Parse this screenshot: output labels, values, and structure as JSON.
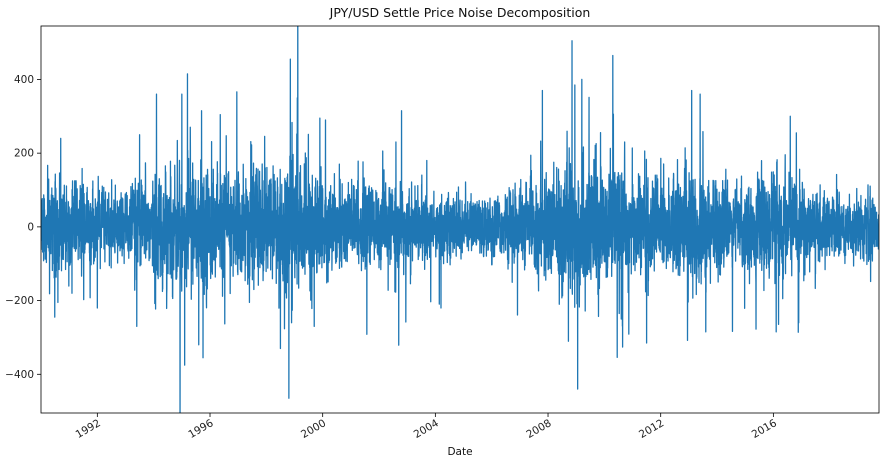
{
  "chart_data": {
    "type": "line",
    "title": "JPY/USD Settle Price Noise Decomposition",
    "xlabel": "Date",
    "ylabel": "",
    "xlim": [
      1990.0,
      2019.75
    ],
    "ylim": [
      -505,
      545
    ],
    "x_ticks": [
      1992,
      1996,
      2000,
      2004,
      2008,
      2012,
      2016
    ],
    "x_tick_labels": [
      "1992",
      "1996",
      "2000",
      "2004",
      "2008",
      "2012",
      "2016"
    ],
    "y_ticks": [
      -400,
      -200,
      0,
      200,
      400
    ],
    "y_tick_labels": [
      "−400",
      "−200",
      "0",
      "200",
      "400"
    ],
    "grid": false,
    "legend": "none",
    "series": [
      {
        "color": "#1f77b4",
        "sample_step_years": 0.004,
        "amplitude_profile": [
          {
            "year": 1990.0,
            "amp": 55
          },
          {
            "year": 1991.0,
            "amp": 60
          },
          {
            "year": 1992.5,
            "amp": 48
          },
          {
            "year": 1994.0,
            "amp": 65
          },
          {
            "year": 1995.3,
            "amp": 90
          },
          {
            "year": 1996.5,
            "amp": 70
          },
          {
            "year": 1998.0,
            "amp": 75
          },
          {
            "year": 1998.8,
            "amp": 95
          },
          {
            "year": 2000.0,
            "amp": 65
          },
          {
            "year": 2002.0,
            "amp": 55
          },
          {
            "year": 2004.0,
            "amp": 45
          },
          {
            "year": 2006.0,
            "amp": 40
          },
          {
            "year": 2007.8,
            "amp": 60
          },
          {
            "year": 2008.8,
            "amp": 100
          },
          {
            "year": 2010.0,
            "amp": 80
          },
          {
            "year": 2012.0,
            "amp": 60
          },
          {
            "year": 2013.3,
            "amp": 80
          },
          {
            "year": 2014.5,
            "amp": 50
          },
          {
            "year": 2016.3,
            "amp": 75
          },
          {
            "year": 2017.5,
            "amp": 45
          },
          {
            "year": 2019.75,
            "amp": 40
          }
        ],
        "spikes": [
          {
            "year": 1990.7,
            "value": 240
          },
          {
            "year": 1990.6,
            "value": -205
          },
          {
            "year": 1991.1,
            "value": -180
          },
          {
            "year": 1992.0,
            "value": -220
          },
          {
            "year": 1993.4,
            "value": -270
          },
          {
            "year": 1993.5,
            "value": 250
          },
          {
            "year": 1994.1,
            "value": 360
          },
          {
            "year": 1995.0,
            "value": 360
          },
          {
            "year": 1995.1,
            "value": -375
          },
          {
            "year": 1995.2,
            "value": 415
          },
          {
            "year": 1995.6,
            "value": -320
          },
          {
            "year": 1995.7,
            "value": 315
          },
          {
            "year": 1995.75,
            "value": -355
          },
          {
            "year": 1997.4,
            "value": 355
          },
          {
            "year": 1997.4,
            "value": -205
          },
          {
            "year": 1998.5,
            "value": -330
          },
          {
            "year": 1998.8,
            "value": -465
          },
          {
            "year": 1998.85,
            "value": 455
          },
          {
            "year": 1999.1,
            "value": 350
          },
          {
            "year": 1999.7,
            "value": -270
          },
          {
            "year": 1999.9,
            "value": 295
          },
          {
            "year": 2000.1,
            "value": 290
          },
          {
            "year": 2002.8,
            "value": 315
          },
          {
            "year": 2004.2,
            "value": 225
          },
          {
            "year": 2004.2,
            "value": -220
          },
          {
            "year": 2007.8,
            "value": 370
          },
          {
            "year": 2008.4,
            "value": -210
          },
          {
            "year": 2008.85,
            "value": 505
          },
          {
            "year": 2008.95,
            "value": 385
          },
          {
            "year": 2009.05,
            "value": -440
          },
          {
            "year": 2009.2,
            "value": 400
          },
          {
            "year": 2010.3,
            "value": 465
          },
          {
            "year": 2010.6,
            "value": -250
          },
          {
            "year": 2011.5,
            "value": -315
          },
          {
            "year": 2013.1,
            "value": 370
          },
          {
            "year": 2013.4,
            "value": 360
          },
          {
            "year": 2013.6,
            "value": -285
          },
          {
            "year": 2016.1,
            "value": -285
          },
          {
            "year": 2016.6,
            "value": 300
          },
          {
            "year": 2016.9,
            "value": -260
          }
        ]
      }
    ]
  }
}
